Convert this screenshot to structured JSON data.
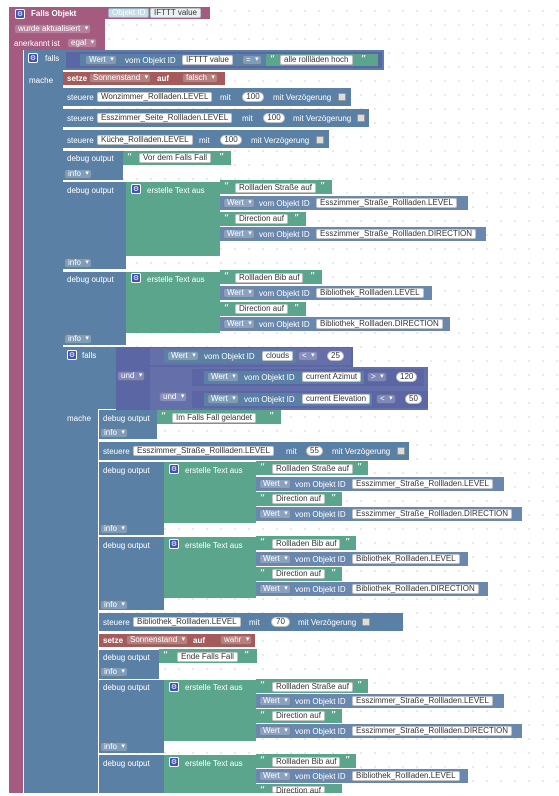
{
  "trigger": {
    "title": "Falls Objekt",
    "oid_label": "Objekt ID",
    "oid_value": "IFTTT value",
    "when": "wurde aktualisiert",
    "ack_label": "anerkannt ist",
    "ack_value": "egal"
  },
  "kw": {
    "falls": "falls",
    "mache": "mache",
    "und": "und",
    "setze": "setze",
    "auf": "auf",
    "steuere": "steuere",
    "mit": "mit",
    "mit_delay": "mit Verzögerung",
    "debug": "debug output",
    "info": "info",
    "create_text": "erstelle Text aus",
    "wert": "Wert",
    "vom_obj": "vom Objekt ID",
    "eq": "=",
    "lt": "<",
    "gt": ">"
  },
  "cond1": {
    "oid": "IFTTT value",
    "text": "alle rollläden hoch"
  },
  "state": {
    "var": "Sonnenstand",
    "value1": "falsch",
    "value2": "wahr"
  },
  "control": {
    "c1": {
      "oid": "Wonzimmer_Rollladen.LEVEL",
      "value": "100"
    },
    "c2": {
      "oid": "Esszimmer_Seite_Rollladen.LEVEL",
      "value": "100"
    },
    "c3": {
      "oid": "Küche_Rollladen.LEVEL",
      "value": "100"
    }
  },
  "dbg": {
    "vor": "Vor dem Falls Fall",
    "im": "Im Falls Fall gelandet",
    "ende": "Ende Falls Fall"
  },
  "text_strasse": {
    "t1": "Rollladen Straße auf",
    "level_oid": "Esszimmer_Straße_Rollladen.LEVEL",
    "t2": "Direction auf",
    "dir_oid": "Esszimmer_Straße_Rollladen.DIRECTION"
  },
  "text_bib": {
    "t1": "Rollladen Bib auf",
    "level_oid": "Bibliothek_Rollladen.LEVEL",
    "t2": "Direction auf",
    "dir_oid": "Bibliothek_Rollladen.DIRECTION"
  },
  "cond2": {
    "c1_oid": "clouds",
    "c1_val": "25",
    "c2_oid": "current Azimut",
    "c2_val": "120",
    "c3_oid": "current Elevation",
    "c3_val": "50"
  },
  "control2": {
    "c1": {
      "oid": "Esszimmer_Straße_Rollladen.LEVEL",
      "value": "55"
    },
    "c2": {
      "oid": "Bibliothek_Rollladen.LEVEL",
      "value": "70"
    }
  }
}
